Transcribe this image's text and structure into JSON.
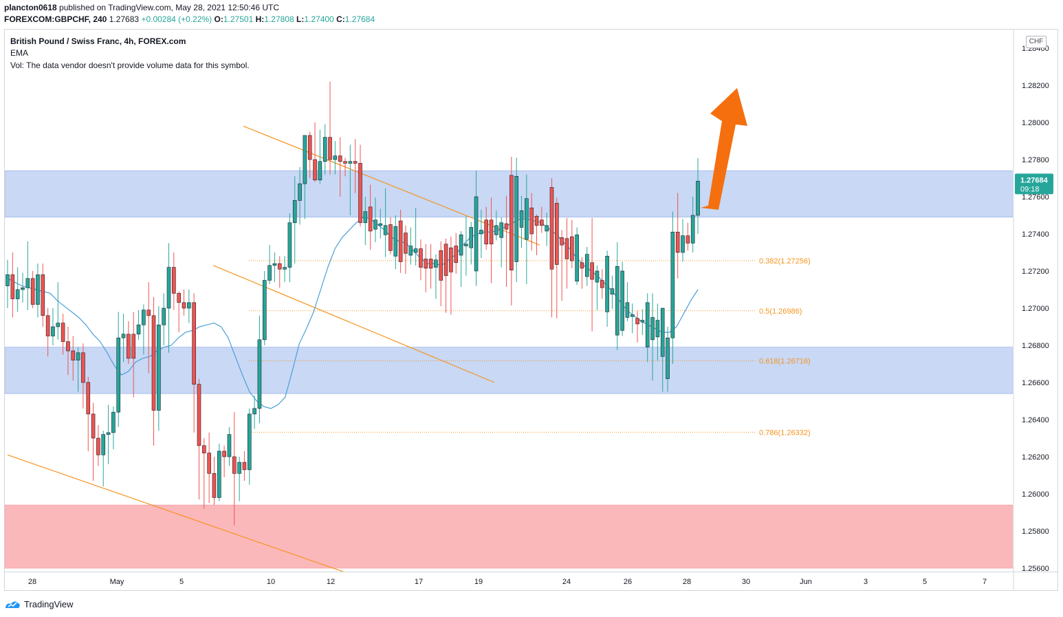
{
  "header": {
    "publisher_line": {
      "user": "plancton0618",
      "text": "published on TradingView.com, May 28, 2021 12:50:46 UTC"
    },
    "ticker_line": {
      "symbol": "FOREXCOM:GBPCHF, 240",
      "last": "1.27683",
      "change": "+0.00284 (+0.22%)",
      "open_label": "O:",
      "open": "1.27501",
      "high_label": "H:",
      "high": "1.27808",
      "low_label": "L:",
      "low": "1.27400",
      "close_label": "C:",
      "close": "1.27684"
    }
  },
  "legend": {
    "title": "British Pound / Swiss Franc, 4h, FOREX.com",
    "indicator": "EMA",
    "volume_note": "Vol: The data vendor doesn't provide volume data for this symbol."
  },
  "currency_button": "CHF",
  "footer": {
    "logo_text": "TradingView",
    "logo_icon": "tradingview-logo-icon"
  },
  "colors": {
    "bull": "#26a69a",
    "bear": "#ef5350",
    "ema": "#4a9fd8",
    "trendline": "#f7931e",
    "zone_blue": "#c8d8f5",
    "zone_red": "#fbb8bb",
    "arrow": "#f56f0f",
    "price_tag": "#26a69a"
  },
  "chart_data": {
    "type": "candlestick",
    "symbol": "GBPCHF",
    "ylim": [
      1.256,
      1.285
    ],
    "y_ticks": [
      "1.28400",
      "1.28200",
      "1.28000",
      "1.27800",
      "1.27600",
      "1.27400",
      "1.27200",
      "1.27000",
      "1.26800",
      "1.26600",
      "1.26400",
      "1.26200",
      "1.26000",
      "1.25800",
      "1.25600"
    ],
    "x_ticks": [
      "28",
      "May",
      "5",
      "10",
      "12",
      "17",
      "19",
      "24",
      "26",
      "28",
      "30",
      "Jun",
      "3",
      "5",
      "7"
    ],
    "last_price": {
      "value": "1.27684",
      "countdown": "09:18"
    },
    "zones": [
      {
        "color": "blue",
        "from": 1.2749,
        "to": 1.2774
      },
      {
        "color": "blue",
        "from": 1.2654,
        "to": 1.2679
      },
      {
        "color": "red",
        "from": 1.256,
        "to": 1.2594
      }
    ],
    "fibonacci": [
      {
        "label": "0.382(1.27256)",
        "value": 1.27256
      },
      {
        "label": "0.5(1.26986)",
        "value": 1.26986
      },
      {
        "label": "0.618(1.26716)",
        "value": 1.26716
      },
      {
        "label": "0.786(1.26332)",
        "value": 1.26332
      }
    ],
    "trendlines": [
      {
        "from": [
          0,
          1.2621
        ],
        "to": [
          67,
          1.2558
        ]
      },
      {
        "from": [
          47,
          1.2798
        ],
        "to": [
          106,
          1.2734
        ]
      },
      {
        "from": [
          41,
          1.2723
        ],
        "to": [
          97,
          1.266
        ]
      }
    ],
    "ema": [
      1.2716,
      1.2714,
      1.2712,
      1.2711,
      1.271,
      1.2709,
      1.2708,
      1.2704,
      1.2701,
      1.2698,
      1.2695,
      1.2691,
      1.2686,
      1.2682,
      1.2676,
      1.2669,
      1.2664,
      1.2666,
      1.2671,
      1.2673,
      1.2674,
      1.2677,
      1.2679,
      1.268,
      1.2684,
      1.2687,
      1.2688,
      1.269,
      1.2691,
      1.2692,
      1.269,
      1.2684,
      1.2674,
      1.2664,
      1.2655,
      1.265,
      1.2647,
      1.2646,
      1.2648,
      1.2652,
      1.2666,
      1.2681,
      1.2689,
      1.2698,
      1.271,
      1.2722,
      1.2732,
      1.2738,
      1.2742,
      1.2746,
      1.2749,
      1.2748,
      1.2745,
      1.2742,
      1.2738,
      1.2736,
      1.2735,
      1.2731,
      1.2727,
      1.2724,
      1.2724,
      1.2723,
      1.2726,
      1.2729,
      1.2734,
      1.2738,
      1.274,
      1.2741,
      1.2741,
      1.2742,
      1.2744,
      1.2746,
      1.2748,
      1.2748,
      1.2747,
      1.2746,
      1.2743,
      1.274,
      1.2736,
      1.2732,
      1.2727,
      1.2723,
      1.272,
      1.2717,
      1.2713,
      1.2709,
      1.2704,
      1.2699,
      1.2696,
      1.2693,
      1.2691,
      1.2689,
      1.2687,
      1.2687,
      1.269,
      1.2697,
      1.2704,
      1.271
    ],
    "candles": [
      [
        1.2712,
        1.2718,
        1.27,
        1.2726
      ],
      [
        1.2718,
        1.2705,
        1.2695,
        1.273
      ],
      [
        1.2705,
        1.271,
        1.2698,
        1.2722
      ],
      [
        1.271,
        1.2711,
        1.2703,
        1.2719
      ],
      [
        1.2711,
        1.2716,
        1.2699,
        1.2736
      ],
      [
        1.2716,
        1.2702,
        1.27,
        1.272
      ],
      [
        1.2702,
        1.2718,
        1.2695,
        1.2724
      ],
      [
        1.2718,
        1.2696,
        1.269,
        1.2724
      ],
      [
        1.2696,
        1.2685,
        1.2674,
        1.27
      ],
      [
        1.2685,
        1.269,
        1.268,
        1.27
      ],
      [
        1.269,
        1.2692,
        1.2683,
        1.2714
      ],
      [
        1.2692,
        1.2682,
        1.2675,
        1.2697
      ],
      [
        1.2682,
        1.2677,
        1.2664,
        1.269
      ],
      [
        1.2677,
        1.2672,
        1.2661,
        1.2685
      ],
      [
        1.2672,
        1.2676,
        1.2655,
        1.2679
      ],
      [
        1.2676,
        1.266,
        1.2646,
        1.2681
      ],
      [
        1.266,
        1.2643,
        1.2623,
        1.2663
      ],
      [
        1.2643,
        1.263,
        1.2607,
        1.2649
      ],
      [
        1.263,
        1.2621,
        1.2615,
        1.2637
      ],
      [
        1.2621,
        1.2632,
        1.2604,
        1.2634
      ],
      [
        1.2632,
        1.2633,
        1.2616,
        1.2648
      ],
      [
        1.2633,
        1.2644,
        1.2624,
        1.2647
      ],
      [
        1.2644,
        1.2684,
        1.2636,
        1.2698
      ],
      [
        1.2684,
        1.2686,
        1.2671,
        1.2697
      ],
      [
        1.2686,
        1.2673,
        1.267,
        1.2693
      ],
      [
        1.2686,
        1.2673,
        1.2652,
        1.2698
      ],
      [
        1.2686,
        1.2691,
        1.2683,
        1.2699
      ],
      [
        1.2691,
        1.2699,
        1.2675,
        1.2702
      ],
      [
        1.2699,
        1.2696,
        1.2665,
        1.2714
      ],
      [
        1.2696,
        1.2645,
        1.2626,
        1.2706
      ],
      [
        1.2645,
        1.2691,
        1.2634,
        1.2701
      ],
      [
        1.2691,
        1.27,
        1.268,
        1.2708
      ],
      [
        1.27,
        1.2722,
        1.2676,
        1.2735
      ],
      [
        1.2722,
        1.2708,
        1.2699,
        1.273
      ],
      [
        1.2708,
        1.2703,
        1.2687,
        1.2709
      ],
      [
        1.2703,
        1.27,
        1.2696,
        1.271
      ],
      [
        1.27,
        1.2703,
        1.2692,
        1.271
      ],
      [
        1.2703,
        1.2659,
        1.2633,
        1.2708
      ],
      [
        1.2659,
        1.2626,
        1.2597,
        1.2662
      ],
      [
        1.2626,
        1.2622,
        1.2592,
        1.263
      ],
      [
        1.2622,
        1.2611,
        1.2595,
        1.2633
      ],
      [
        1.2611,
        1.2598,
        1.2594,
        1.262
      ],
      [
        1.2598,
        1.2623,
        1.2596,
        1.2627
      ],
      [
        1.2623,
        1.262,
        1.2609,
        1.2626
      ],
      [
        1.262,
        1.2632,
        1.2615,
        1.2636
      ],
      [
        1.262,
        1.2611,
        1.2583,
        1.2644
      ],
      [
        1.2611,
        1.2617,
        1.2596,
        1.262
      ],
      [
        1.2617,
        1.2613,
        1.2607,
        1.2623
      ],
      [
        1.2613,
        1.2643,
        1.2605,
        1.2646
      ],
      [
        1.2643,
        1.2646,
        1.2635,
        1.2653
      ],
      [
        1.2646,
        1.2683,
        1.2638,
        1.2696
      ],
      [
        1.2683,
        1.2715,
        1.268,
        1.272
      ],
      [
        1.2715,
        1.2723,
        1.2713,
        1.2734
      ],
      [
        1.2723,
        1.2724,
        1.2714,
        1.273
      ],
      [
        1.2724,
        1.2721,
        1.2711,
        1.2728
      ],
      [
        1.2721,
        1.2722,
        1.2714,
        1.2728
      ],
      [
        1.2722,
        1.2746,
        1.2714,
        1.2751
      ],
      [
        1.2746,
        1.2758,
        1.2724,
        1.2771
      ],
      [
        1.2758,
        1.2767,
        1.2745,
        1.2776
      ],
      [
        1.2767,
        1.2793,
        1.2748,
        1.2793
      ],
      [
        1.2793,
        1.278,
        1.277,
        1.2795
      ],
      [
        1.278,
        1.2769,
        1.2768,
        1.28
      ],
      [
        1.2769,
        1.2779,
        1.2767,
        1.2796
      ],
      [
        1.2779,
        1.2792,
        1.2772,
        1.2799
      ],
      [
        1.2792,
        1.278,
        1.2772,
        1.2822
      ],
      [
        1.278,
        1.2782,
        1.2772,
        1.279
      ],
      [
        1.2782,
        1.2779,
        1.276,
        1.2792
      ],
      [
        1.2779,
        1.2778,
        1.2771,
        1.2781
      ],
      [
        1.2778,
        1.2779,
        1.275,
        1.2788
      ],
      [
        1.2779,
        1.2778,
        1.2762,
        1.2791
      ],
      [
        1.2778,
        1.2746,
        1.2744,
        1.2788
      ]
    ]
  }
}
